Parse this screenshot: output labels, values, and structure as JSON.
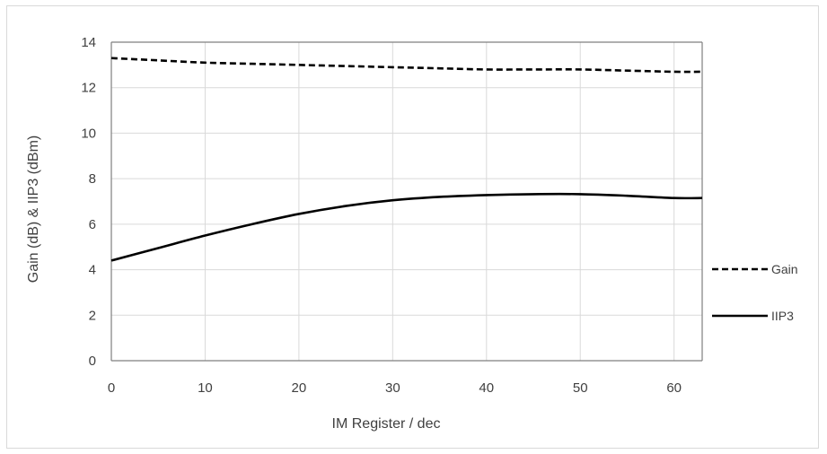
{
  "chart_data": {
    "type": "line",
    "title": "",
    "xlabel": "IM Register / dec",
    "ylabel": "Gain (dB) & IIP3 (dBm)",
    "xlim": [
      0,
      63
    ],
    "ylim": [
      0,
      14
    ],
    "xticks": [
      0,
      10,
      20,
      30,
      40,
      50,
      60
    ],
    "yticks": [
      0,
      2,
      4,
      6,
      8,
      10,
      12,
      14
    ],
    "grid": true,
    "legend_position": "right",
    "series": [
      {
        "name": "Gain",
        "style": "dashed",
        "color": "#000000",
        "x": [
          0,
          5,
          10,
          15,
          20,
          25,
          30,
          35,
          40,
          45,
          50,
          55,
          60,
          63
        ],
        "y": [
          13.3,
          13.2,
          13.1,
          13.05,
          13.0,
          12.95,
          12.9,
          12.85,
          12.8,
          12.8,
          12.8,
          12.75,
          12.7,
          12.7
        ]
      },
      {
        "name": "IIP3",
        "style": "solid",
        "color": "#000000",
        "x": [
          0,
          5,
          10,
          15,
          20,
          25,
          30,
          35,
          40,
          45,
          50,
          55,
          60,
          63
        ],
        "y": [
          4.4,
          4.95,
          5.5,
          6.0,
          6.45,
          6.8,
          7.05,
          7.2,
          7.28,
          7.32,
          7.32,
          7.25,
          7.15,
          7.15
        ]
      }
    ]
  }
}
